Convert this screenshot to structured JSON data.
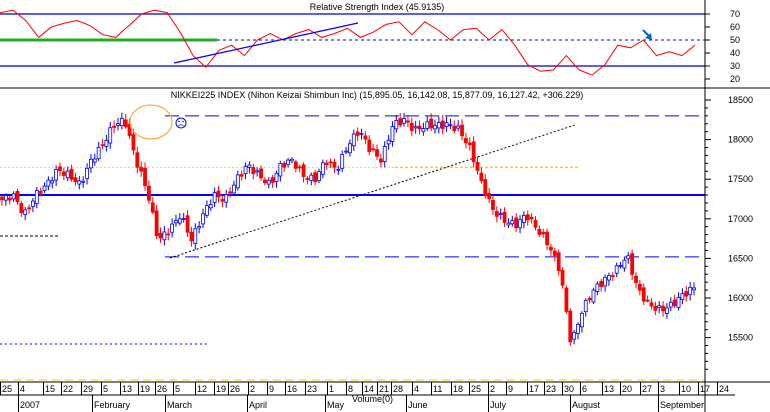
{
  "chart_data": [
    {
      "type": "line",
      "title": "Relative Strength Index (45.9135)",
      "yticks": [
        "70",
        "60",
        "50",
        "40",
        "30",
        "20"
      ],
      "ytick_values": [
        70,
        60,
        50,
        40,
        30,
        20
      ],
      "ylim": [
        10,
        80
      ],
      "overbought": 70,
      "oversold": 30,
      "midline": 50,
      "values": [
        71,
        73,
        65,
        52,
        60,
        63,
        65,
        61,
        54,
        52,
        61,
        70,
        73,
        71,
        56,
        38,
        29,
        42,
        46,
        38,
        50,
        55,
        50,
        55,
        58,
        52,
        55,
        59,
        52,
        56,
        62,
        64,
        54,
        64,
        58,
        50,
        58,
        59,
        50,
        58,
        46,
        31,
        26,
        27,
        38,
        27,
        23,
        31,
        46,
        44,
        50,
        38,
        41,
        38,
        46
      ],
      "colors": {
        "line": "#ff0000",
        "bands": "#0000cc",
        "support": "#22aa22",
        "trend": "#0000ff"
      }
    },
    {
      "type": "candlestick",
      "title": "NIKKEI225 INDEX (Nihon Keizai Shimbun Inc) (15,895.05, 16,142.08, 15,877.09, 16,127.42, +306.229)",
      "yticks": [
        "18500",
        "18000",
        "17500",
        "17000",
        "16500",
        "16000",
        "15500"
      ],
      "ytick_values": [
        18500,
        18000,
        17500,
        17000,
        16500,
        16000,
        15500
      ],
      "ylim": [
        15050,
        18580
      ],
      "closes": [
        17240,
        17300,
        17050,
        17300,
        17430,
        17620,
        17550,
        17430,
        17740,
        17930,
        18180,
        18250,
        17740,
        17360,
        16730,
        16860,
        17050,
        16730,
        17050,
        17300,
        17240,
        17490,
        17680,
        17550,
        17430,
        17680,
        17740,
        17550,
        17490,
        17740,
        17620,
        17930,
        18120,
        17870,
        17740,
        18180,
        18250,
        18120,
        18180,
        18180,
        18190,
        18120,
        17870,
        17430,
        17110,
        16980,
        16920,
        17050,
        16860,
        16670,
        16350,
        15410,
        15850,
        16100,
        16230,
        16350,
        16540,
        16100,
        15910,
        15850,
        15910,
        16040,
        16127
      ],
      "levels": {
        "resistance": 18300,
        "support_major": 17300,
        "support_lower": 16520,
        "yellow_level": 17650
      },
      "volume_label": "Volume(0)",
      "colors": {
        "up": "#0000ff",
        "down": "#ff0000",
        "levels": "#0000ff",
        "yellow": "#ffcc00",
        "highlight": "#ffaa44"
      }
    }
  ],
  "x_axis": {
    "day_labels": [
      "25",
      "4",
      "15",
      "22",
      "29",
      "5",
      "13",
      "19",
      "26",
      "5",
      "12",
      "19",
      "26",
      "2",
      "9",
      "16",
      "23",
      "1",
      "8",
      "14",
      "21",
      "28",
      "4",
      "11",
      "18",
      "25",
      "2",
      "9",
      "17",
      "23",
      "30",
      "6",
      "13",
      "20",
      "27",
      "3",
      "10",
      "17",
      "24"
    ],
    "month_labels": [
      "2007",
      "February",
      "March",
      "April",
      "May",
      "June",
      "July",
      "August",
      "September"
    ]
  }
}
